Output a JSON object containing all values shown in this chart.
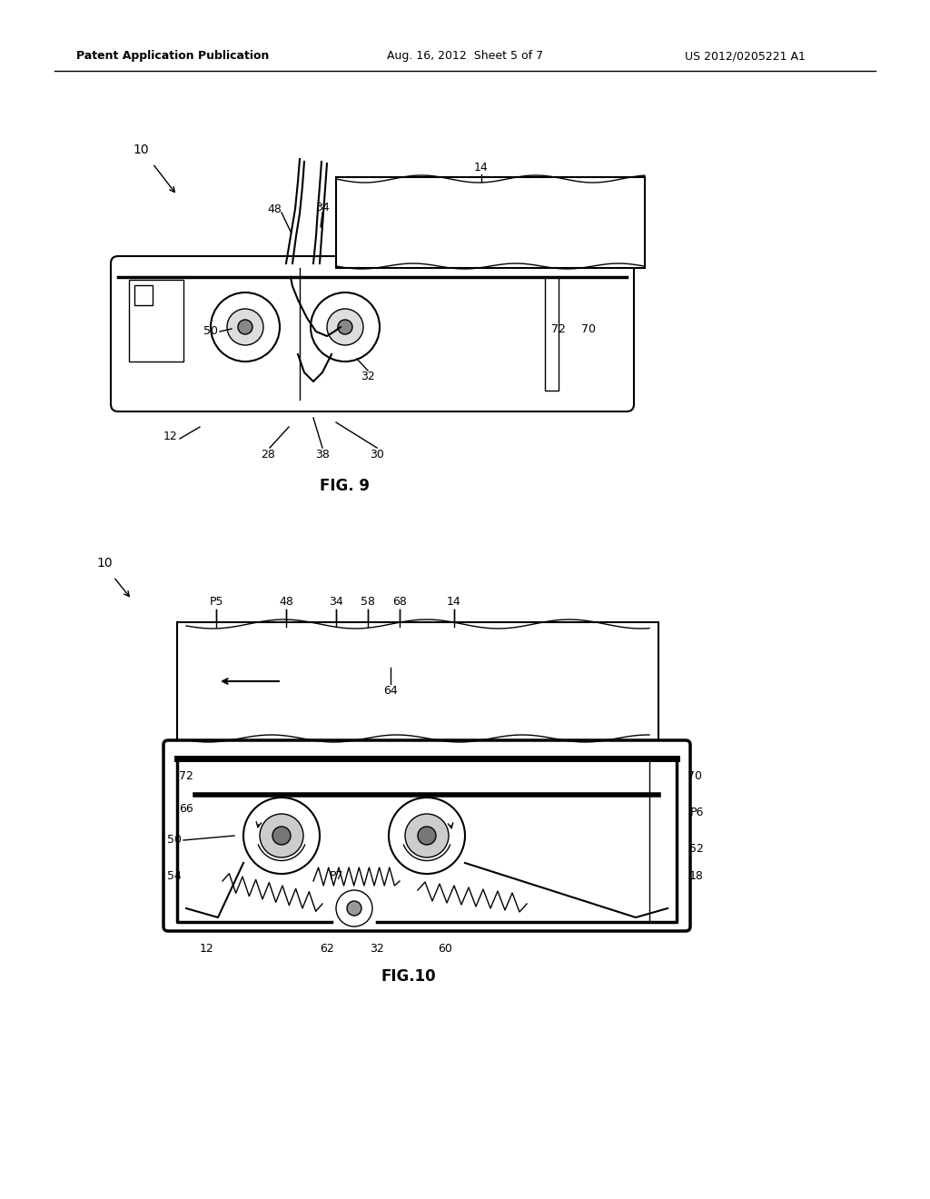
{
  "background_color": "#ffffff",
  "header_left": "Patent Application Publication",
  "header_center": "Aug. 16, 2012  Sheet 5 of 7",
  "header_right": "US 2012/0205221 A1",
  "fig9_caption": "FIG. 9",
  "fig10_caption": "FIG.10",
  "line_color": "#000000",
  "gray_color": "#888888",
  "light_gray": "#cccccc"
}
